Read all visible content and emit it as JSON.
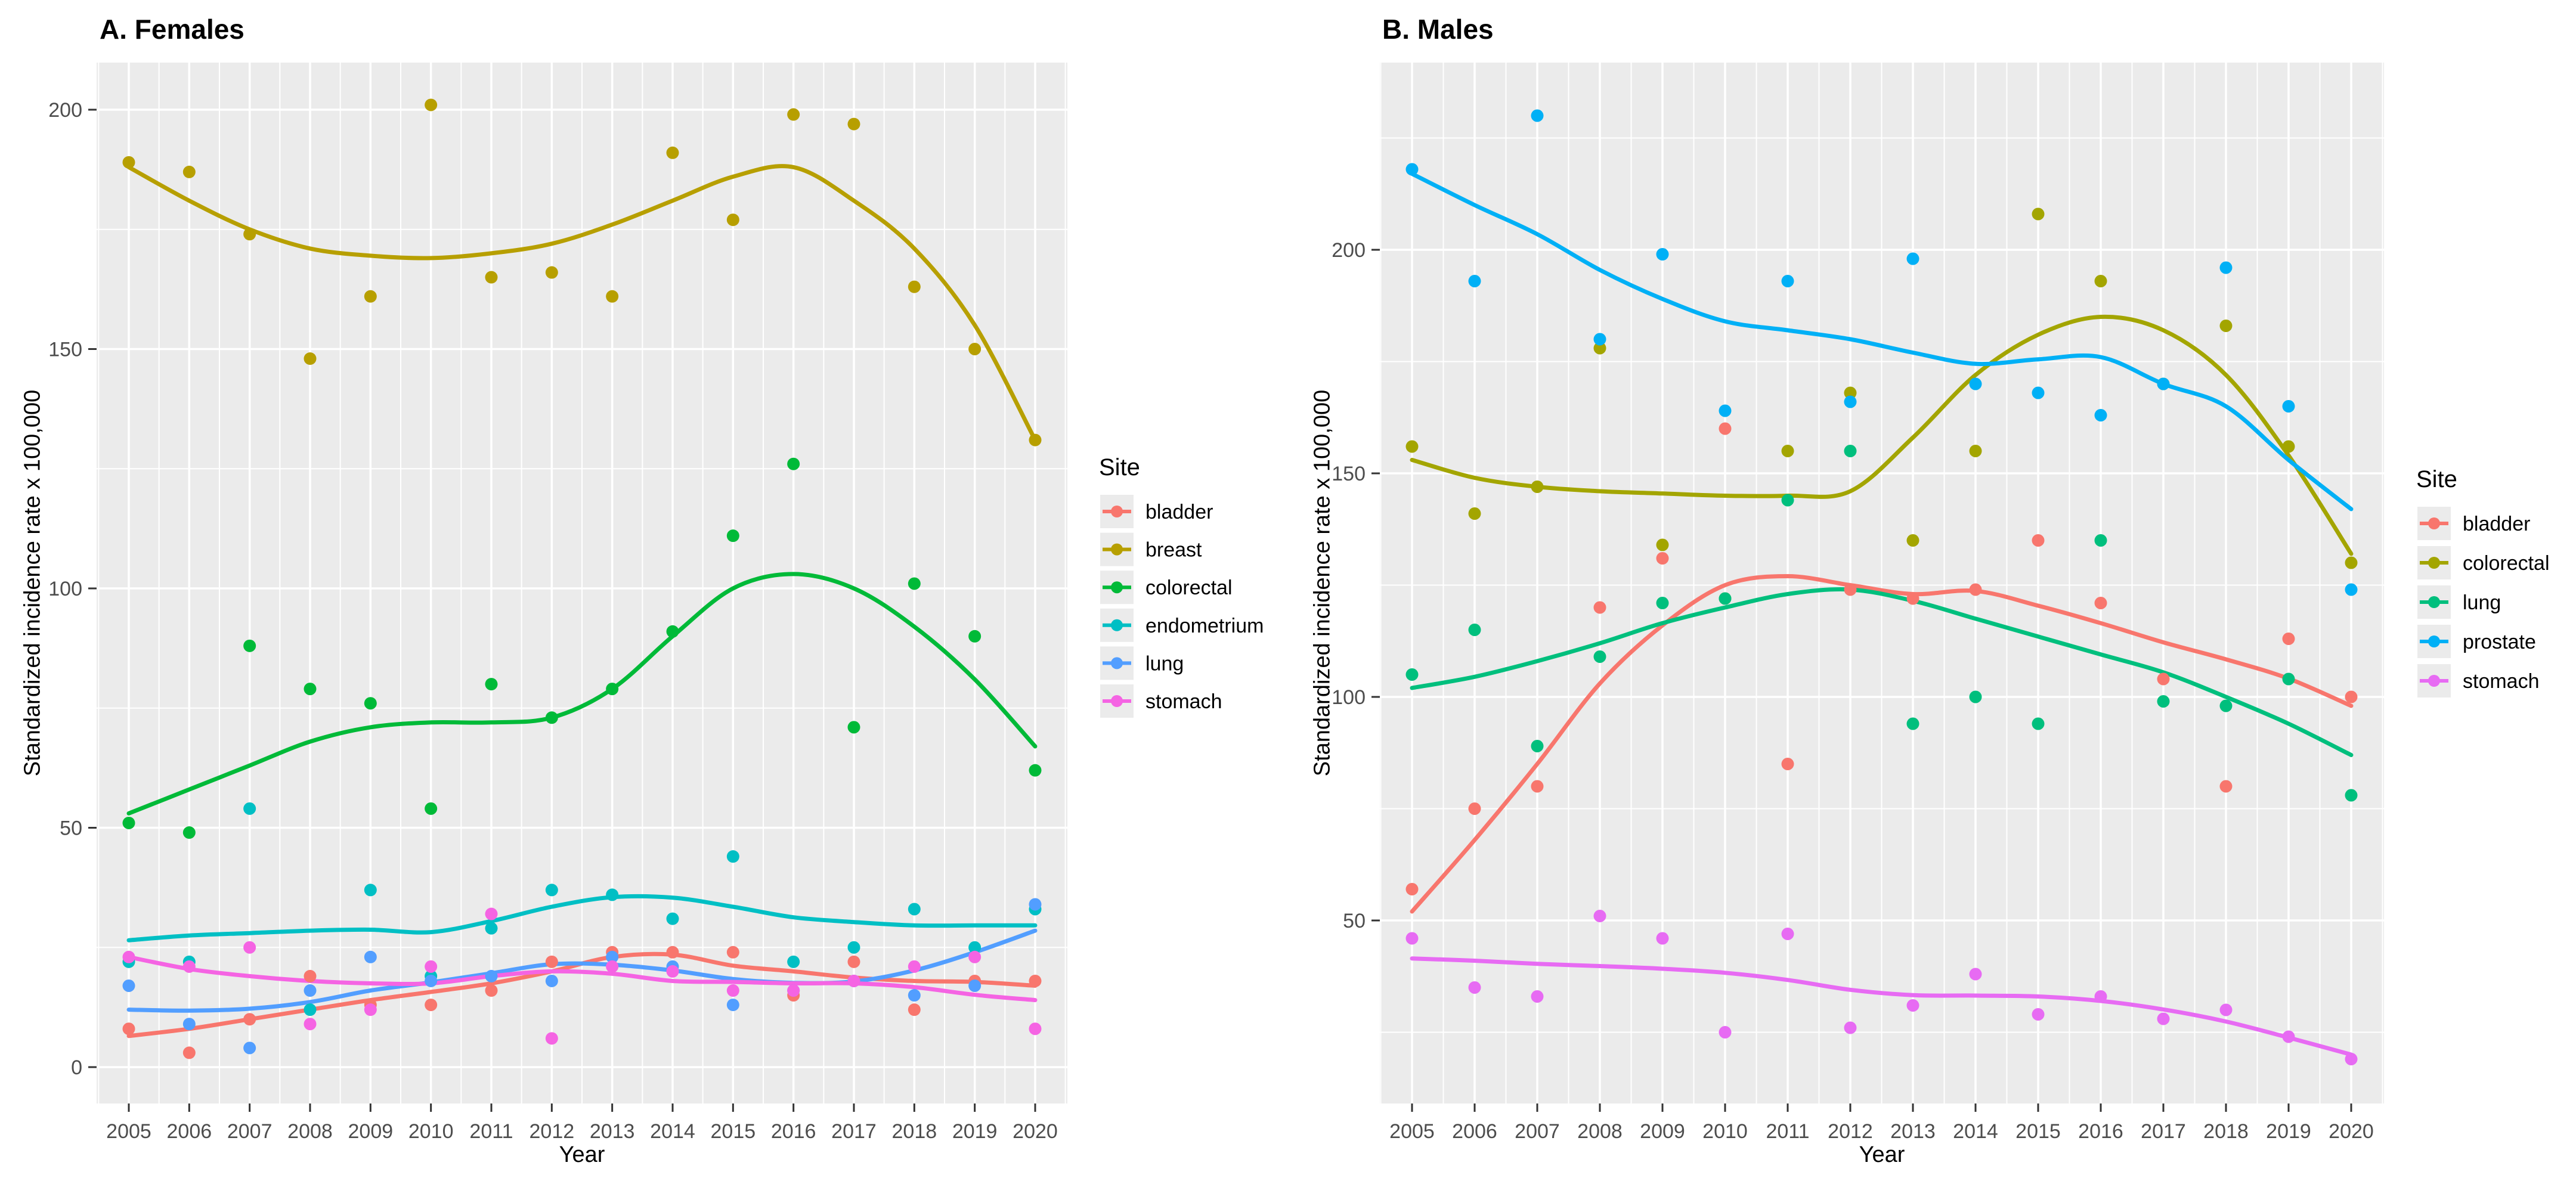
{
  "chart_data": [
    {
      "type": "scatter",
      "panel": "A",
      "title": "A. Females",
      "xlabel": "Year",
      "ylabel": "Standardized incidence rate x 100,000",
      "legend_title": "Site",
      "x": [
        2005,
        2006,
        2007,
        2008,
        2009,
        2010,
        2011,
        2012,
        2013,
        2014,
        2015,
        2016,
        2017,
        2018,
        2019,
        2020
      ],
      "xticks": [
        2005,
        2006,
        2007,
        2008,
        2009,
        2010,
        2011,
        2012,
        2013,
        2014,
        2015,
        2016,
        2017,
        2018,
        2019,
        2020
      ],
      "yticks": [
        0,
        50,
        100,
        150,
        200
      ],
      "ylim": [
        -7.5,
        210
      ],
      "grid": "on",
      "legend_position": "right",
      "smoother": "loess",
      "series": [
        {
          "name": "bladder",
          "color": "#F8766D",
          "points": [
            8,
            3,
            10,
            19,
            13,
            13,
            16,
            22,
            24,
            24,
            24,
            15,
            22,
            12,
            18,
            18
          ],
          "trend": [
            6.5,
            8,
            10,
            12,
            14,
            15.7,
            17.5,
            20,
            23,
            23.5,
            21.2,
            20,
            18.7,
            18,
            17.8,
            17
          ]
        },
        {
          "name": "breast",
          "color": "#B79F00",
          "points": [
            189,
            187,
            174,
            148,
            161,
            201,
            165,
            166,
            161,
            191,
            177,
            199,
            197,
            163,
            150,
            131
          ],
          "trend": [
            188,
            181,
            175,
            171,
            169.5,
            169,
            170,
            172,
            176,
            181,
            186,
            188,
            181,
            171,
            155,
            131
          ]
        },
        {
          "name": "colorectal",
          "color": "#00BA38",
          "points": [
            51,
            49,
            88,
            79,
            76,
            54,
            80,
            73,
            79,
            91,
            111,
            126,
            71,
            101,
            90,
            62
          ],
          "trend": [
            53,
            58,
            63,
            68,
            71,
            72,
            72,
            73,
            79,
            90,
            100,
            103,
            100,
            92,
            81,
            67
          ]
        },
        {
          "name": "endometrium",
          "color": "#00BFC4",
          "points": [
            22,
            22,
            54,
            12,
            37,
            19,
            29,
            37,
            36,
            31,
            44,
            22,
            25,
            33,
            25,
            33
          ],
          "trend": [
            26.5,
            27.5,
            28,
            28.5,
            28.7,
            28.2,
            30.5,
            33.5,
            35.5,
            35.4,
            33.5,
            31.3,
            30.3,
            29.6,
            29.6,
            29.6
          ]
        },
        {
          "name": "lung",
          "color": "#529EFF",
          "points": [
            17,
            9,
            4,
            16,
            23,
            18,
            19,
            18,
            23,
            21,
            13,
            16,
            18,
            15,
            17,
            34
          ],
          "trend": [
            12,
            11.8,
            12.2,
            13.6,
            16,
            17.7,
            19.6,
            21.5,
            21.4,
            20.2,
            18.4,
            17.6,
            17.9,
            20.2,
            24,
            28.5
          ]
        },
        {
          "name": "stomach",
          "color": "#F564E3",
          "points": [
            23,
            21,
            25,
            9,
            12,
            21,
            32,
            6,
            21,
            20,
            16,
            16,
            18,
            21,
            23,
            8
          ],
          "trend": [
            23,
            20.5,
            19,
            18,
            17.5,
            17.5,
            19,
            20,
            19.5,
            18,
            17.8,
            17.5,
            17.5,
            16.7,
            15.1,
            14
          ]
        }
      ]
    },
    {
      "type": "scatter",
      "panel": "B",
      "title": "B. Males",
      "xlabel": "Year",
      "ylabel": "Standardized incidence rate x 100,000",
      "legend_title": "Site",
      "x": [
        2005,
        2006,
        2007,
        2008,
        2009,
        2010,
        2011,
        2012,
        2013,
        2014,
        2015,
        2016,
        2017,
        2018,
        2019,
        2020
      ],
      "xticks": [
        2005,
        2006,
        2007,
        2008,
        2009,
        2010,
        2011,
        2012,
        2013,
        2014,
        2015,
        2016,
        2017,
        2018,
        2019,
        2020
      ],
      "yticks": [
        50,
        100,
        150,
        200
      ],
      "ylim": [
        9,
        241
      ],
      "grid": "on",
      "legend_position": "right",
      "smoother": "loess",
      "series": [
        {
          "name": "bladder",
          "color": "#F8766D",
          "points": [
            57,
            75,
            80,
            120,
            131,
            160,
            85,
            124,
            122,
            124,
            135,
            121,
            104,
            80,
            113,
            100
          ],
          "trend": [
            52,
            68,
            85,
            103,
            116,
            125,
            127,
            125,
            123,
            123.7,
            120.4,
            116.5,
            112.2,
            108.4,
            104.1,
            98
          ]
        },
        {
          "name": "colorectal",
          "color": "#A3A500",
          "points": [
            156,
            141,
            147,
            178,
            134,
            122,
            155,
            168,
            135,
            155,
            208,
            193,
            170,
            183,
            156,
            130
          ],
          "trend": [
            153,
            149,
            147,
            146,
            145.5,
            145,
            145,
            146,
            158,
            172,
            181,
            185,
            182,
            172,
            154,
            132
          ]
        },
        {
          "name": "lung",
          "color": "#00BF7D",
          "points": [
            105,
            115,
            89,
            109,
            121,
            122,
            144,
            155,
            94,
            100,
            94,
            135,
            99,
            98,
            104,
            78
          ],
          "trend": [
            102,
            104.5,
            108,
            112,
            116.5,
            120,
            123,
            124,
            121.5,
            117.5,
            113.5,
            109.5,
            105.5,
            100,
            94,
            87
          ]
        },
        {
          "name": "prostate",
          "color": "#00B0F6",
          "points": [
            218,
            193,
            230,
            180,
            199,
            164,
            193,
            166,
            198,
            170,
            168,
            163,
            170,
            196,
            165,
            124
          ],
          "trend": [
            217,
            210,
            203.5,
            195.5,
            189,
            184,
            182,
            180,
            177,
            174.5,
            175.5,
            176,
            170,
            165,
            153,
            142
          ]
        },
        {
          "name": "stomach",
          "color": "#E76BF3",
          "points": [
            46,
            35,
            33,
            51,
            46,
            25,
            47,
            26,
            31,
            38,
            29,
            33,
            28,
            30,
            24,
            19
          ],
          "trend": [
            41.5,
            41,
            40.3,
            39.8,
            39.2,
            38.3,
            36.7,
            34.5,
            33.3,
            33.2,
            33,
            32,
            30.1,
            27.4,
            23.8,
            20
          ]
        }
      ]
    }
  ],
  "style": {
    "panel_background": "#EBEBEB",
    "gridline_color": "#FFFFFF",
    "tick_label_color": "#4D4D4D",
    "legend_key_background": "#EBEBEB"
  }
}
